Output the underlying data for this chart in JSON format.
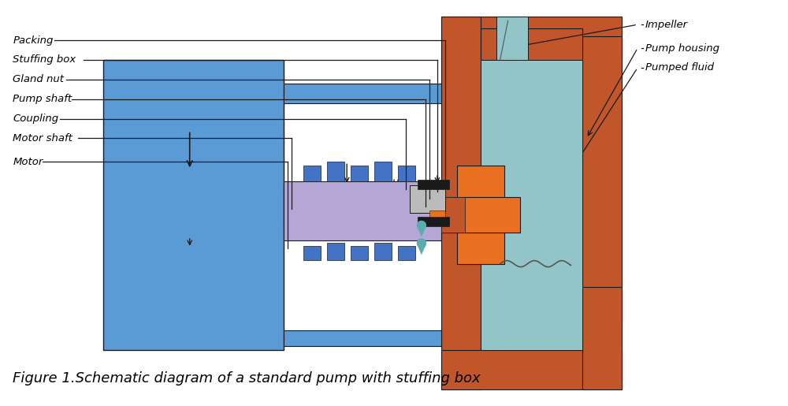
{
  "title": "Figure 1.Schematic diagram of a standard pump with stuffing box",
  "title_fontsize": 13,
  "title_style": "italic",
  "colors": {
    "motor_blue": "#5B9BD5",
    "shaft_blue": "#4472C4",
    "coupling_purple": "#B4A7D6",
    "pump_housing_orange": "#C0562A",
    "impeller_orange": "#E87020",
    "fluid_teal": "#92C5C8",
    "black": "#1a1a1a",
    "white": "#FFFFFF",
    "dark_gray": "#555555",
    "light_gray": "#CCCCCC",
    "gland_gray": "#BBBBBB",
    "arrow_color": "#1a1a1a",
    "drop_teal": "#5AADAD",
    "line_color": "#1a1a1a"
  },
  "labels_left": [
    "Packing",
    "Stuffing box",
    "Gland nut",
    "Pump shaft",
    "Coupling",
    "Motor shaft",
    "Motor"
  ],
  "labels_right": [
    "Impeller",
    "Pump housing",
    "Pumped fluid"
  ]
}
